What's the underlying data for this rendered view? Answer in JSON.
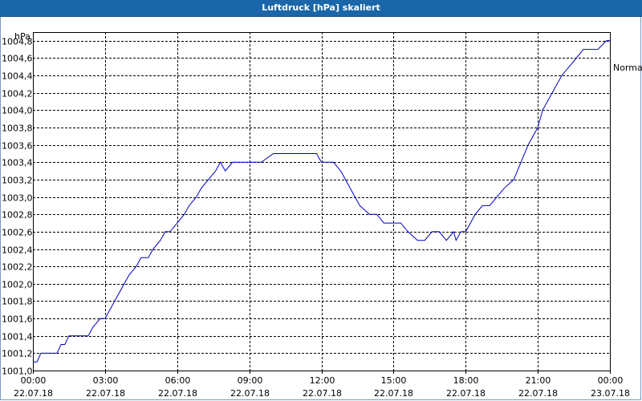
{
  "window": {
    "title": "Luftdruck [hPa] skaliert"
  },
  "chart_data": {
    "type": "line",
    "title": "Luftdruck [hPa] skaliert",
    "ylabel": "hPa",
    "xlabel": "",
    "ylim": [
      1001.0,
      1004.9
    ],
    "y_ticks": [
      "1001,0",
      "1001,2",
      "1001,4",
      "1001,6",
      "1001,8",
      "1002,0",
      "1002,2",
      "1002,4",
      "1002,6",
      "1002,8",
      "1003,0",
      "1003,2",
      "1003,4",
      "1003,6",
      "1003,8",
      "1004,0",
      "1004,2",
      "1004,4",
      "1004,6",
      "1004,8"
    ],
    "x_range_hours": [
      0,
      24
    ],
    "x_ticks": [
      {
        "time": "00:00",
        "date": "22.07.18"
      },
      {
        "time": "03:00",
        "date": "22.07.18"
      },
      {
        "time": "06:00",
        "date": "22.07.18"
      },
      {
        "time": "09:00",
        "date": "22.07.18"
      },
      {
        "time": "12:00",
        "date": "22.07.18"
      },
      {
        "time": "15:00",
        "date": "22.07.18"
      },
      {
        "time": "18:00",
        "date": "22.07.18"
      },
      {
        "time": "21:00",
        "date": "22.07.18"
      },
      {
        "time": "00:00",
        "date": "23.07.18"
      }
    ],
    "grid": true,
    "legend_label": "Normal",
    "line_color": "#0000c8",
    "series": [
      {
        "x_hours": [
          0,
          0.17,
          0.33,
          0.5,
          1.0,
          1.17,
          1.33,
          1.5,
          2.3,
          2.5,
          2.8,
          3.0,
          3.2,
          3.4,
          3.6,
          3.8,
          4.0,
          4.3,
          4.5,
          4.8,
          5.0,
          5.3,
          5.5,
          5.7,
          6.0,
          6.3,
          6.5,
          6.8,
          7.0,
          7.3,
          7.6,
          7.8,
          8.0,
          8.3,
          8.6,
          9.0,
          9.5,
          10.0,
          10.5,
          10.7,
          11.0,
          11.5,
          11.8,
          12.0,
          12.5,
          12.8,
          13.0,
          13.2,
          13.4,
          13.6,
          14.0,
          14.3,
          14.6,
          15.0,
          15.3,
          15.6,
          16.0,
          16.3,
          16.6,
          16.9,
          17.2,
          17.5,
          17.6,
          17.8,
          18.0,
          18.2,
          18.4,
          18.7,
          19.0,
          19.3,
          19.6,
          20.0,
          20.3,
          20.6,
          21.0,
          21.2,
          21.4,
          21.6,
          21.8,
          22.0,
          22.3,
          22.6,
          22.9,
          23.2,
          23.5,
          23.85,
          24.0
        ],
        "values": [
          1001.1,
          1001.1,
          1001.2,
          1001.2,
          1001.2,
          1001.3,
          1001.3,
          1001.4,
          1001.4,
          1001.5,
          1001.6,
          1001.6,
          1001.7,
          1001.8,
          1001.9,
          1002.0,
          1002.1,
          1002.2,
          1002.3,
          1002.3,
          1002.4,
          1002.5,
          1002.6,
          1002.6,
          1002.7,
          1002.8,
          1002.9,
          1003.0,
          1003.1,
          1003.2,
          1003.3,
          1003.4,
          1003.3,
          1003.4,
          1003.4,
          1003.4,
          1003.4,
          1003.5,
          1003.5,
          1003.5,
          1003.5,
          1003.5,
          1003.5,
          1003.4,
          1003.4,
          1003.3,
          1003.2,
          1003.1,
          1003.0,
          1002.9,
          1002.8,
          1002.8,
          1002.7,
          1002.7,
          1002.7,
          1002.6,
          1002.5,
          1002.5,
          1002.6,
          1002.6,
          1002.5,
          1002.6,
          1002.5,
          1002.6,
          1002.6,
          1002.7,
          1002.8,
          1002.9,
          1002.9,
          1003.0,
          1003.1,
          1003.2,
          1003.4,
          1003.6,
          1003.8,
          1004.0,
          1004.1,
          1004.2,
          1004.3,
          1004.4,
          1004.5,
          1004.6,
          1004.7,
          1004.7,
          1004.7,
          1004.8,
          1004.8
        ]
      }
    ]
  }
}
